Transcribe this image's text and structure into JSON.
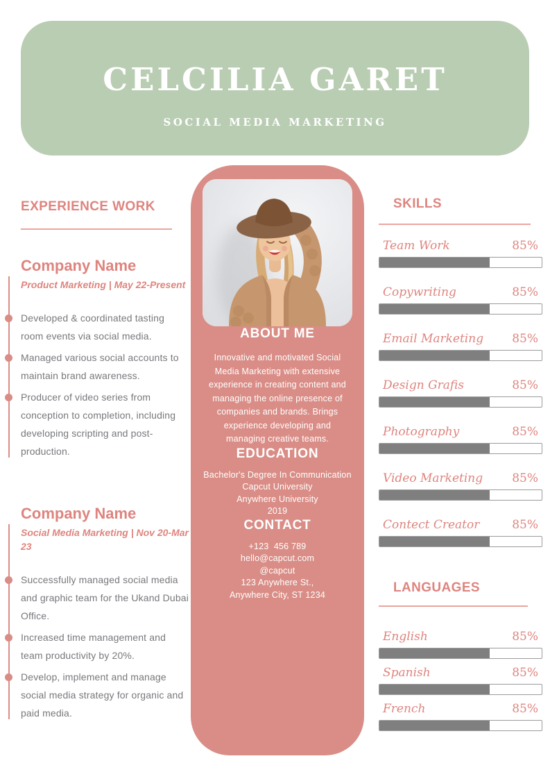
{
  "header": {
    "name": "CELCILIA GARET",
    "title": "SOCIAL MEDIA MARKETING"
  },
  "experience": {
    "heading": "EXPERIENCE WORK",
    "jobs": [
      {
        "company": "Company Name",
        "meta": "Product Marketing | May 22-Present",
        "bullets": [
          "Developed & coordinated tasting room events via social media.",
          "Managed various social accounts to maintain brand awareness.",
          "Producer of video series from conception to completion, including developing scripting and post-production."
        ]
      },
      {
        "company": "Company Name",
        "meta": "Social Media Marketing | Nov 20-Mar 23",
        "bullets": [
          "Successfully managed social media and graphic team for the Ukand Dubai Office.",
          "Increased time management and team productivity by 20%.",
          "Develop, implement and manage social media strategy for organic and paid media."
        ]
      }
    ]
  },
  "profile": {
    "photo_description": "woman-in-brown-hat-and-knit-cardigan",
    "about": {
      "heading": "ABOUT ME",
      "text": "Innovative and motivated Social Media Marketing with extensive experience in creating content and managing the online presence of companies and brands. Brings experience developing and managing creative teams."
    },
    "education": {
      "heading": "EDUCATION",
      "lines": [
        "Bachelor's Degree In Communication",
        "Capcut University",
        "Anywhere University",
        "2019"
      ]
    },
    "contact": {
      "heading": "CONTACT",
      "lines": [
        "+123  456 789",
        "hello@capcut.com",
        "@capcut",
        "123 Anywhere St.,",
        "Anywhere City, ST 1234"
      ]
    }
  },
  "skills": {
    "heading": "SKILLS",
    "items": [
      {
        "label": "Team Work",
        "pct": "85%",
        "fill": 68
      },
      {
        "label": "Copywriting",
        "pct": "85%",
        "fill": 68
      },
      {
        "label": "Email Marketing",
        "pct": "85%",
        "fill": 68
      },
      {
        "label": "Design Grafis",
        "pct": "85%",
        "fill": 68
      },
      {
        "label": "Photography",
        "pct": "85%",
        "fill": 68
      },
      {
        "label": "Video Marketing",
        "pct": "85%",
        "fill": 68
      },
      {
        "label": "Contect Creator",
        "pct": "85%",
        "fill": 68
      }
    ]
  },
  "languages": {
    "heading": "LANGUAGES",
    "items": [
      {
        "label": "English",
        "pct": "85%",
        "fill": 68
      },
      {
        "label": "Spanish",
        "pct": "85%",
        "fill": 68
      },
      {
        "label": "French",
        "pct": "85%",
        "fill": 68
      }
    ]
  },
  "colors": {
    "header_bg": "#b9cdb3",
    "panel_bg": "#d98d86",
    "accent_text": "#de847e",
    "rule": "#eba49d",
    "bar_fill": "#7f7f7f",
    "bar_border": "#9b9b9b",
    "body_text": "#77787c",
    "white": "#ffffff"
  }
}
